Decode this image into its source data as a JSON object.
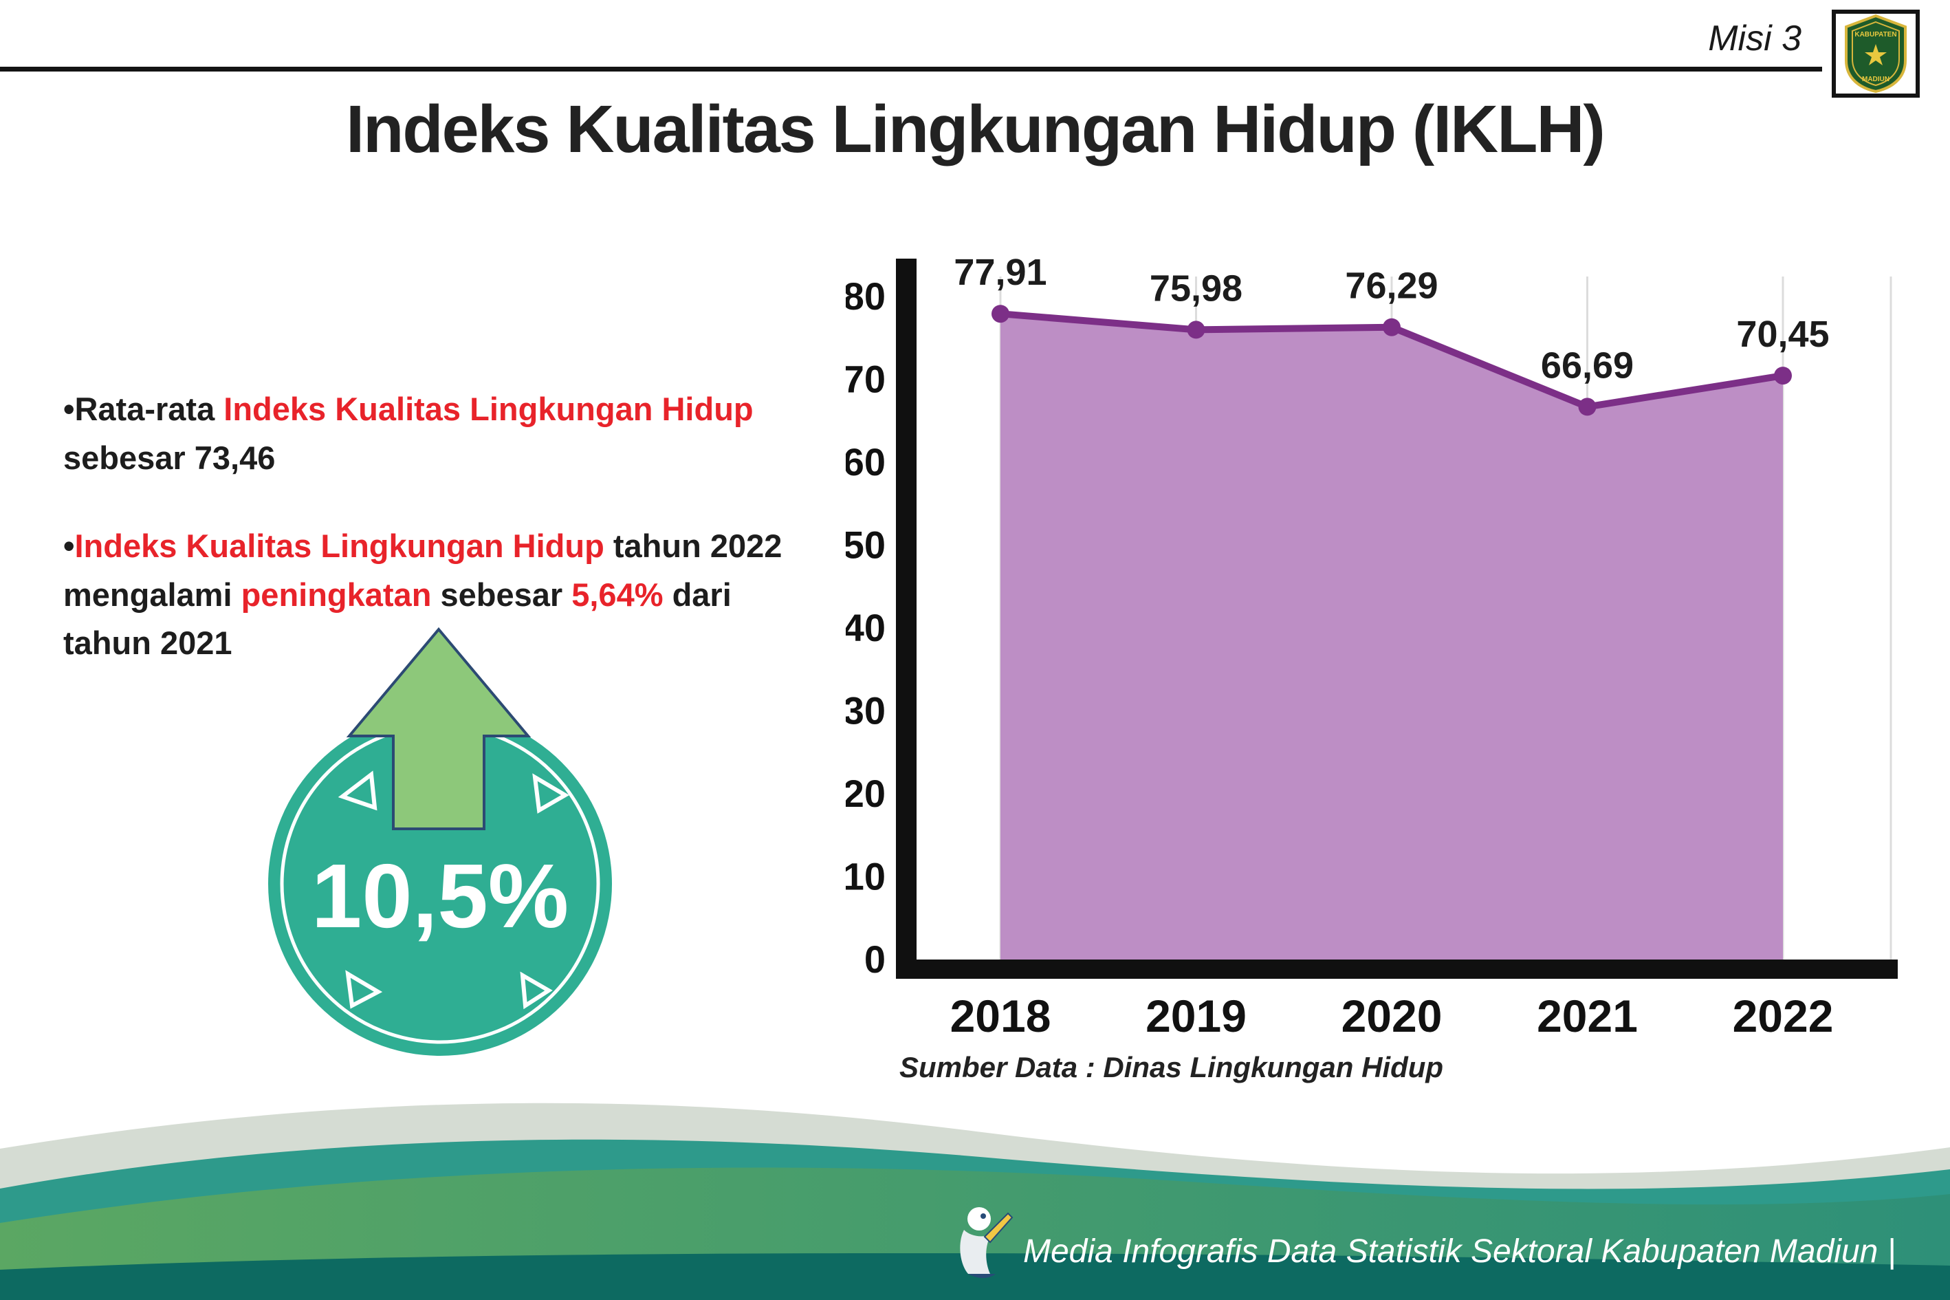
{
  "header": {
    "misi_label": "Misi 3",
    "logo": {
      "top": "KABUPATEN",
      "bottom": "MADIUN"
    }
  },
  "title": "Indeks Kualitas Lingkungan Hidup (IKLH)",
  "bullets": {
    "dot": "•",
    "b1": {
      "seg0": "Rata-rata ",
      "seg1": "Indeks Kualitas Lingkungan Hidup",
      "seg2": " sebesar 73,46"
    },
    "b2": {
      "seg0": "Indeks Kualitas Lingkungan Hidup",
      "seg1": " tahun 2022 mengalami ",
      "seg2": "peningkatan",
      "seg3": " sebesar ",
      "seg4": "5,64%",
      "seg5": " dari tahun 2021"
    }
  },
  "badge": {
    "value": "10,5%",
    "circle_color": "#2fae93",
    "arrow_color": "#8dc87a"
  },
  "chart_data": {
    "type": "area",
    "categories": [
      "2018",
      "2019",
      "2020",
      "2021",
      "2022"
    ],
    "values": [
      77.91,
      75.98,
      76.29,
      66.69,
      70.45
    ],
    "value_labels": [
      "77,91",
      "75,98",
      "76,29",
      "66,69",
      "70,45"
    ],
    "ylim": [
      0,
      80
    ],
    "yticks": [
      0,
      10,
      20,
      30,
      40,
      50,
      60,
      70,
      80
    ],
    "grid": "vertical",
    "legend": "none",
    "colors": {
      "area": "#bd8ec5",
      "line": "#7c2f87",
      "point": "#7c2f87"
    },
    "source": "Sumber Data : Dinas Lingkungan Hidup"
  },
  "footer": {
    "text": "Media Infografis Data Statistik Sektoral Kabupaten Madiun |"
  }
}
